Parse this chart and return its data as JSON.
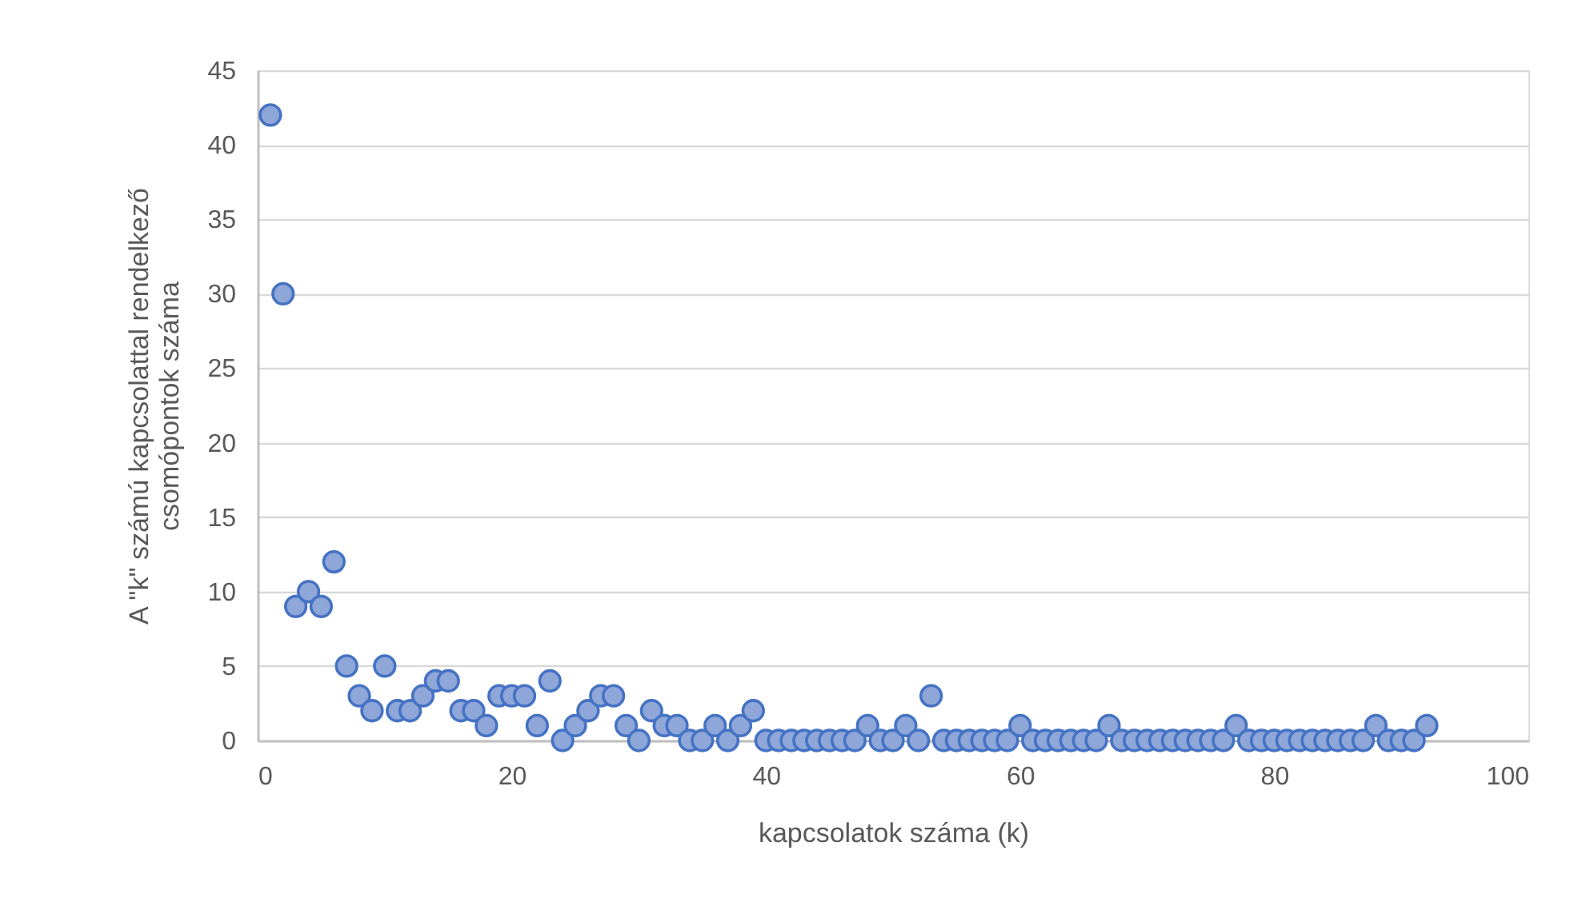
{
  "chart_data": {
    "type": "scatter",
    "xlabel": "kapcsolatok száma (k)",
    "ylabel": "A \"k\" számú kapcsolattal rendelkező\ncsomópontok száma",
    "x": [
      1,
      2,
      3,
      4,
      5,
      6,
      7,
      8,
      9,
      10,
      11,
      12,
      13,
      14,
      15,
      16,
      17,
      18,
      19,
      20,
      21,
      22,
      23,
      24,
      25,
      26,
      27,
      28,
      29,
      30,
      31,
      32,
      33,
      34,
      35,
      36,
      37,
      38,
      39,
      40,
      41,
      42,
      43,
      44,
      45,
      46,
      47,
      48,
      49,
      50,
      51,
      52,
      53,
      54,
      55,
      56,
      57,
      58,
      59,
      60,
      61,
      62,
      63,
      64,
      65,
      66,
      67,
      68,
      69,
      70,
      71,
      72,
      73,
      74,
      75,
      76,
      77,
      78,
      79,
      80,
      81,
      82,
      83,
      84,
      85,
      86,
      87,
      88,
      89,
      90,
      91,
      92
    ],
    "values": [
      42,
      30,
      9,
      10,
      9,
      12,
      5,
      3,
      2,
      5,
      2,
      2,
      3,
      4,
      4,
      2,
      2,
      1,
      3,
      3,
      3,
      1,
      4,
      0,
      1,
      2,
      3,
      3,
      1,
      0,
      2,
      1,
      1,
      0,
      0,
      1,
      0,
      1,
      2,
      0,
      0,
      0,
      0,
      0,
      0,
      0,
      0,
      1,
      0,
      0,
      1,
      0,
      3,
      0,
      0,
      0,
      0,
      0,
      0,
      1,
      0,
      0,
      0,
      0,
      0,
      0,
      1,
      0,
      0,
      0,
      0,
      0,
      0,
      0,
      0,
      0,
      1,
      0,
      0,
      0,
      0,
      0,
      0,
      0,
      0,
      0,
      0,
      1,
      0,
      0,
      0,
      1
    ],
    "color": "#8fa6d8",
    "marker": "circle",
    "xlim": [
      0,
      100
    ],
    "xticks": [
      0,
      20,
      40,
      60,
      80,
      100
    ],
    "ylim": [
      0,
      45
    ],
    "yticks": [
      0,
      5,
      10,
      15,
      20,
      25,
      30,
      35,
      40,
      45
    ],
    "grid": "y"
  }
}
